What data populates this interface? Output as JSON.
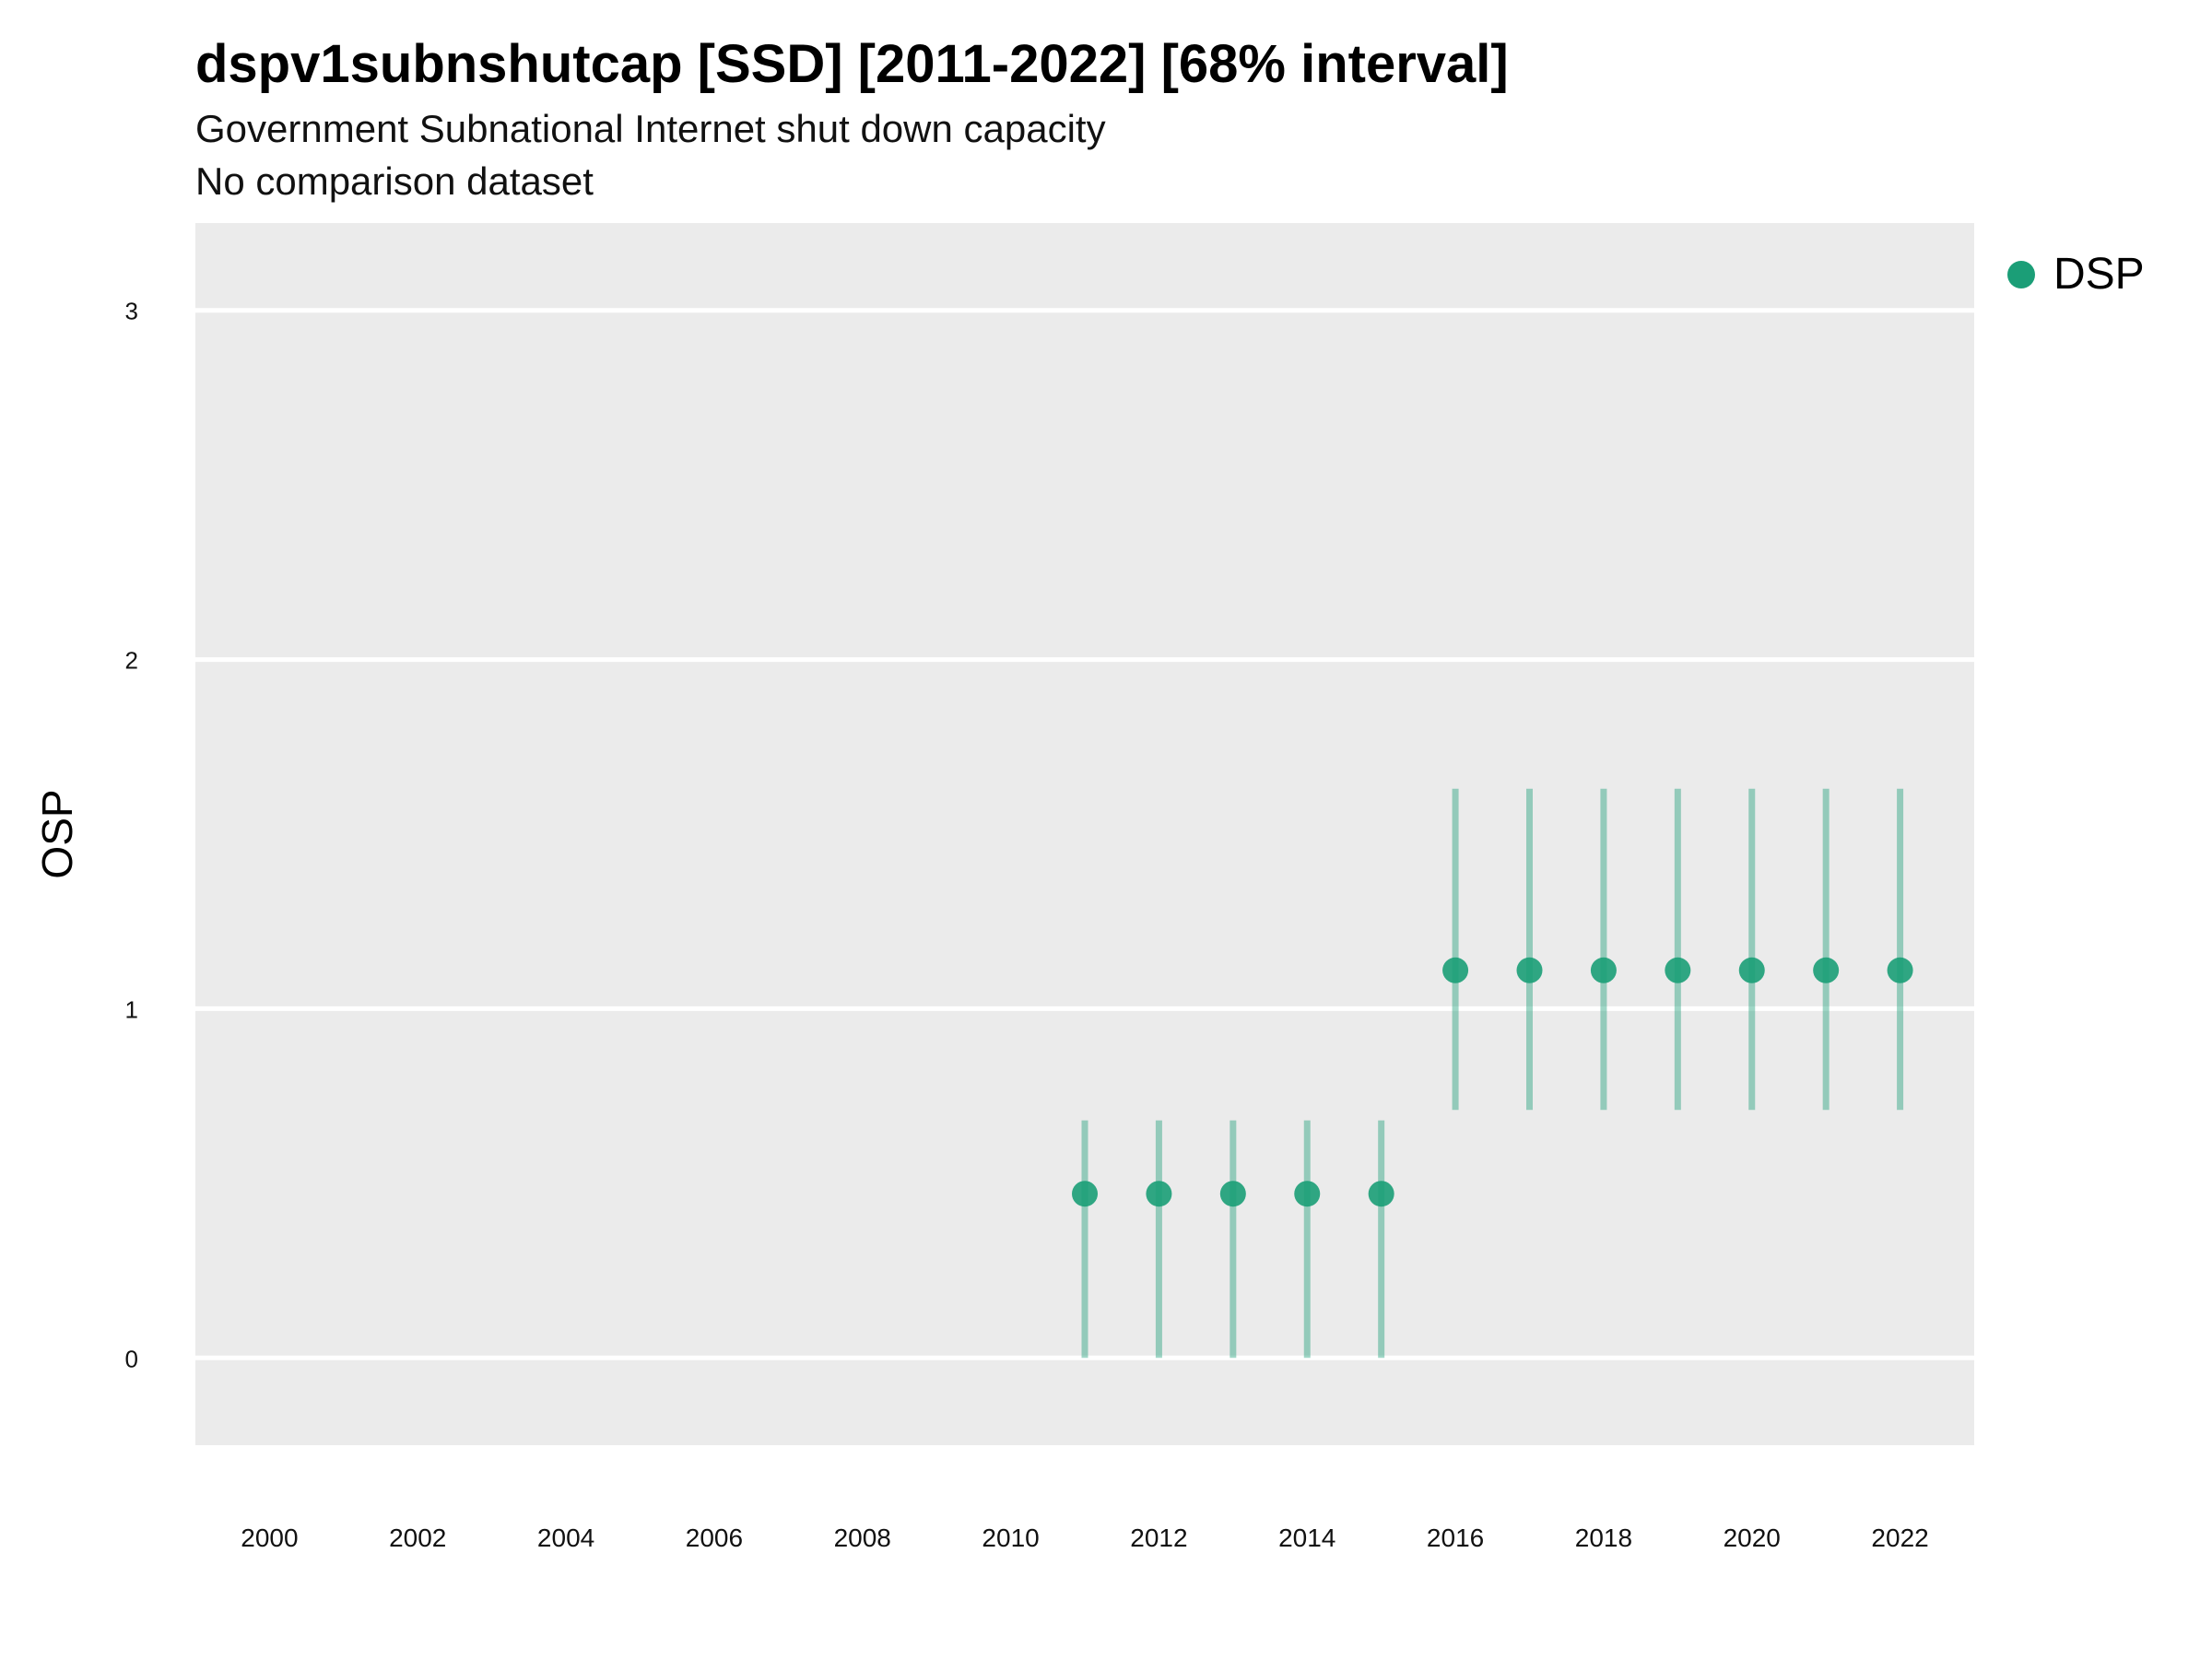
{
  "chart_data": {
    "type": "scatter",
    "title": "dspv1subnshutcap [SSD] [2011-2022] [68% interval]",
    "subtitle": "Government Subnational Internet shut down capacity",
    "caption": "No comparison dataset",
    "ylabel": "OSP",
    "xlabel": "",
    "xlim": [
      1999,
      2023
    ],
    "ylim": [
      -0.25,
      3.25
    ],
    "x_ticks": [
      2000,
      2002,
      2004,
      2006,
      2008,
      2010,
      2012,
      2014,
      2016,
      2018,
      2020,
      2022
    ],
    "y_ticks": [
      0,
      1,
      2,
      3
    ],
    "grid": true,
    "legend_position": "top-right",
    "colors": {
      "series": "#1b9e77",
      "panel": "#ebebeb",
      "grid": "#ffffff"
    },
    "series": [
      {
        "name": "DSP",
        "points": [
          {
            "x": 2011,
            "y": 0.47,
            "low": 0.0,
            "high": 0.68
          },
          {
            "x": 2012,
            "y": 0.47,
            "low": 0.0,
            "high": 0.68
          },
          {
            "x": 2013,
            "y": 0.47,
            "low": 0.0,
            "high": 0.68
          },
          {
            "x": 2014,
            "y": 0.47,
            "low": 0.0,
            "high": 0.68
          },
          {
            "x": 2015,
            "y": 0.47,
            "low": 0.0,
            "high": 0.68
          },
          {
            "x": 2016,
            "y": 1.11,
            "low": 0.71,
            "high": 1.63
          },
          {
            "x": 2017,
            "y": 1.11,
            "low": 0.71,
            "high": 1.63
          },
          {
            "x": 2018,
            "y": 1.11,
            "low": 0.71,
            "high": 1.63
          },
          {
            "x": 2019,
            "y": 1.11,
            "low": 0.71,
            "high": 1.63
          },
          {
            "x": 2020,
            "y": 1.11,
            "low": 0.71,
            "high": 1.63
          },
          {
            "x": 2021,
            "y": 1.11,
            "low": 0.71,
            "high": 1.63
          },
          {
            "x": 2022,
            "y": 1.11,
            "low": 0.71,
            "high": 1.63
          }
        ]
      }
    ]
  }
}
